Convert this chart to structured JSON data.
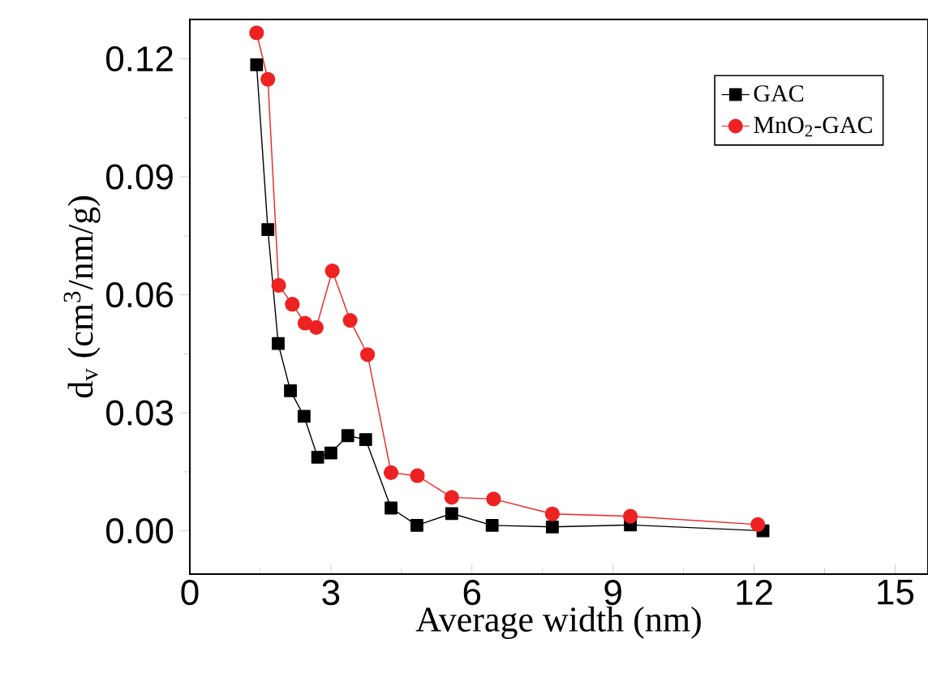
{
  "chart_data": {
    "type": "line",
    "xlabel": "Average width (nm)",
    "ylabel": "d$_{v}$ (cm$^{3}$/nm/g)",
    "xlim": [
      0,
      15.7
    ],
    "ylim": [
      -0.011,
      0.13
    ],
    "xticks": [
      0,
      3,
      6,
      9,
      12,
      15
    ],
    "yticks": [
      {
        "value": 0,
        "label": "0.00"
      },
      0.03,
      0.06,
      0.09,
      0.12
    ],
    "legend": "top right",
    "grid": false,
    "line_style": "solid",
    "series": [
      {
        "name": "GAC",
        "color": "#000000",
        "marker": "square",
        "x": [
          1.42,
          1.66,
          1.88,
          2.14,
          2.43,
          2.72,
          3.0,
          3.36,
          3.74,
          4.28,
          4.83,
          5.57,
          6.43,
          7.71,
          9.37,
          12.19
        ],
        "values": [
          0.1185,
          0.0766,
          0.0476,
          0.0356,
          0.0291,
          0.0187,
          0.0198,
          0.0242,
          0.0232,
          0.0058,
          0.0014,
          0.0044,
          0.0014,
          0.001,
          0.0015,
          0.0
        ]
      },
      {
        "name": "MnO$_{2}$-GAC",
        "color": "#ee2222",
        "marker": "circle",
        "x": [
          1.42,
          1.66,
          1.89,
          2.18,
          2.45,
          2.69,
          3.03,
          3.41,
          3.78,
          4.28,
          4.84,
          5.57,
          6.46,
          7.71,
          9.37,
          12.08
        ],
        "values": [
          0.1266,
          0.1148,
          0.0624,
          0.0576,
          0.0528,
          0.0517,
          0.0661,
          0.0535,
          0.0448,
          0.0148,
          0.014,
          0.0085,
          0.0081,
          0.0043,
          0.0037,
          0.0016
        ]
      }
    ]
  }
}
